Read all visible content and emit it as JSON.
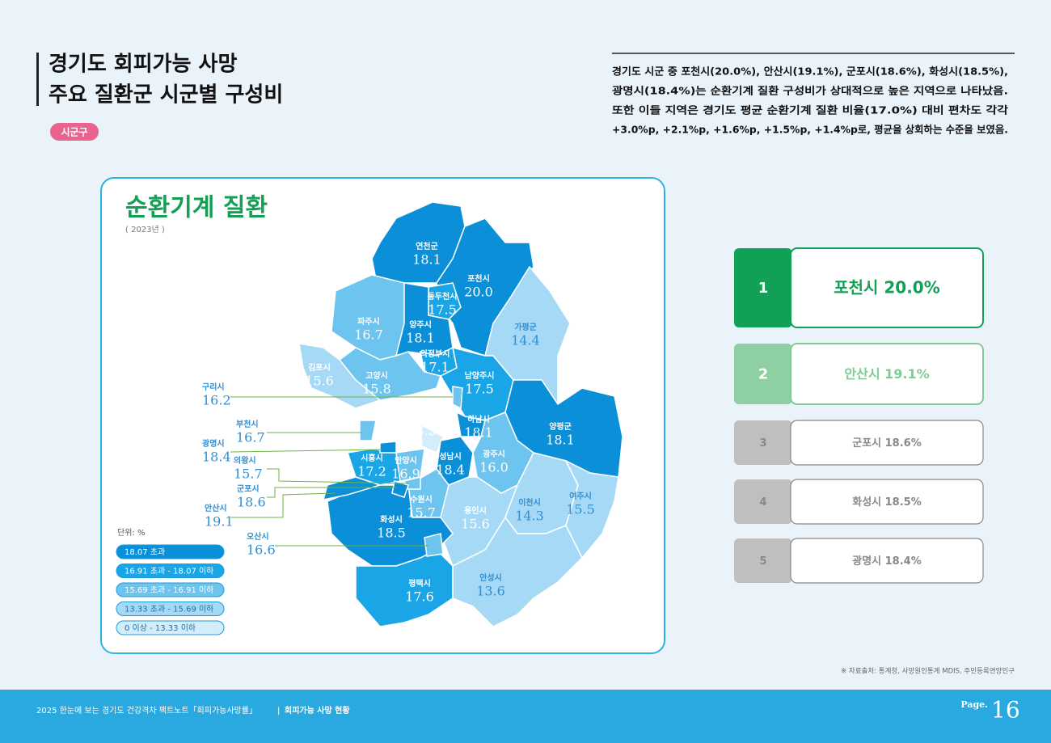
{
  "header": {
    "title_lines": [
      "경기도 회피가능 사망",
      "주요 질환군 시군별 구성비"
    ],
    "tag": "시군구"
  },
  "summary": [
    "경기도 시군 중 포천시(20.0%), 안산시(19.1%), 군포시(18.6%), 화성시(18.5%),",
    "광명시(18.4%)는 순환기계 질환 구성비가 상대적으로 높은 지역으로 나타났음.",
    "또한 이들 지역은 경기도 평균 순환기계 질환 비율(17.0%) 대비 편차도 각각",
    "+3.0%p, +2.1%p, +1.6%p, +1.5%p, +1.4%p로, 평균을 상회하는 수준을 보였음."
  ],
  "map": {
    "title": "순환기계 질환",
    "year": "( 2023년 )",
    "unit": "단위: %",
    "legend": [
      {
        "label": "18.07 초과",
        "color": "#0a8fd8"
      },
      {
        "label": "16.91 초과 - 18.07 이하",
        "color": "#1aa6e6"
      },
      {
        "label": "15.69 초과 - 16.91 이하",
        "color": "#6dc4ef"
      },
      {
        "label": "13.33 초과 - 15.69 이하",
        "color": "#a6d9f5"
      },
      {
        "label": "0 이상 - 13.33 이하",
        "color": "#d4edfb"
      }
    ],
    "regions": [
      {
        "name": "연천군",
        "value": "18.1",
        "color": "#0a8fd8"
      },
      {
        "name": "포천시",
        "value": "20.0",
        "color": "#0a8fd8"
      },
      {
        "name": "동두천시",
        "value": "17.5",
        "color": "#1aa6e6"
      },
      {
        "name": "파주시",
        "value": "16.7",
        "color": "#6dc4ef"
      },
      {
        "name": "양주시",
        "value": "18.1",
        "color": "#0a8fd8"
      },
      {
        "name": "가평군",
        "value": "14.4",
        "color": "#a6d9f5"
      },
      {
        "name": "의정부시",
        "value": "17.1",
        "color": "#1aa6e6"
      },
      {
        "name": "김포시",
        "value": "15.6",
        "color": "#a6d9f5"
      },
      {
        "name": "고양시",
        "value": "15.8",
        "color": "#6dc4ef"
      },
      {
        "name": "남양주시",
        "value": "17.5",
        "color": "#1aa6e6"
      },
      {
        "name": "과천시",
        "value": "13.3",
        "color": "#d4edfb"
      },
      {
        "name": "하남시",
        "value": "18.1",
        "color": "#0a8fd8"
      },
      {
        "name": "양평군",
        "value": "18.1",
        "color": "#0a8fd8"
      },
      {
        "name": "시흥시",
        "value": "17.2",
        "color": "#1aa6e6"
      },
      {
        "name": "안양시",
        "value": "16.9",
        "color": "#6dc4ef"
      },
      {
        "name": "성남시",
        "value": "18.4",
        "color": "#0a8fd8"
      },
      {
        "name": "광주시",
        "value": "16.0",
        "color": "#6dc4ef"
      },
      {
        "name": "수원시",
        "value": "15.7",
        "color": "#6dc4ef"
      },
      {
        "name": "용인시",
        "value": "15.6",
        "color": "#a6d9f5"
      },
      {
        "name": "이천시",
        "value": "14.3",
        "color": "#a6d9f5"
      },
      {
        "name": "여주시",
        "value": "15.5",
        "color": "#a6d9f5"
      },
      {
        "name": "화성시",
        "value": "18.5",
        "color": "#0a8fd8"
      },
      {
        "name": "평택시",
        "value": "17.6",
        "color": "#1aa6e6"
      },
      {
        "name": "안성시",
        "value": "13.6",
        "color": "#a6d9f5"
      },
      {
        "name": "구리시",
        "value": "16.2",
        "color": "#6dc4ef"
      },
      {
        "name": "부천시",
        "value": "16.7",
        "color": "#6dc4ef"
      },
      {
        "name": "광명시",
        "value": "18.4",
        "color": "#0a8fd8"
      },
      {
        "name": "의왕시",
        "value": "15.7",
        "color": "#6dc4ef"
      },
      {
        "name": "군포시",
        "value": "18.6",
        "color": "#0a8fd8"
      },
      {
        "name": "안산시",
        "value": "19.1",
        "color": "#0a8fd8"
      },
      {
        "name": "오산시",
        "value": "16.6",
        "color": "#6dc4ef"
      }
    ]
  },
  "ranking": [
    {
      "rank": "1",
      "text": "포천시 20.0%"
    },
    {
      "rank": "2",
      "text": "안산시 19.1%"
    },
    {
      "rank": "3",
      "text": "군포시 18.6%"
    },
    {
      "rank": "4",
      "text": "화성시 18.5%"
    },
    {
      "rank": "5",
      "text": "광명시 18.4%"
    }
  ],
  "source": "※ 자료출처: 통계청, 사망원인통계 MDIS, 주민등록연앙인구",
  "footer": {
    "text": "2025 한눈에 보는 경기도 건강격차 팩트노트「회피가능사망률」",
    "separator": "|",
    "section": "회피가능 사망 현황",
    "page_label": "Page.",
    "page": "16"
  }
}
